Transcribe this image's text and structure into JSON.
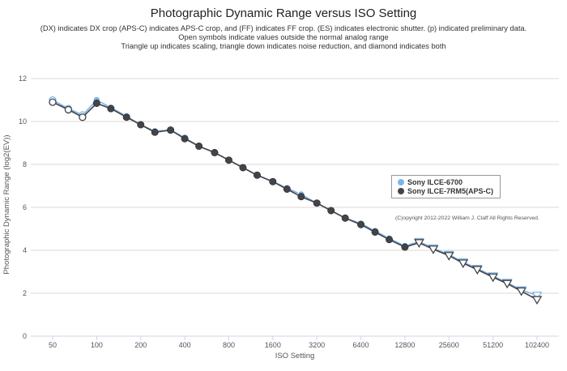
{
  "title": "Photographic Dynamic Range versus ISO Setting",
  "subtitle_lines": [
    "(DX) indicates DX crop (APS-C) indicates APS-C crop, and (FF) indicates FF crop. (ES) indicates electronic shutter. (p) indicated preliminary data.",
    "Open symbols indicate values outside the normal analog range",
    "Triangle up indicates scaling, triangle down indicates noise reduction, and diamond indicates both"
  ],
  "copyright": "(C)opyright 2012-2022 William J. Claff All Rights Reserved.",
  "colors": {
    "sony_6700": "#7cb5ec",
    "sony_7rm5": "#434348",
    "grid": "#d8d8d8",
    "axis": "#ccd6eb"
  },
  "chart_data": {
    "type": "line",
    "xlabel": "ISO Setting",
    "ylabel": "Photographic Dynamic Range (log2(EV))",
    "x_scale": "log2",
    "x_ticks": [
      50,
      100,
      200,
      400,
      800,
      1600,
      3200,
      6400,
      12800,
      25600,
      51200,
      102400
    ],
    "x_tick_labels": [
      "50",
      "100",
      "200",
      "400",
      "800",
      "1600",
      "3200",
      "6400",
      "12800",
      "25600",
      "51200",
      "102400"
    ],
    "ylim": [
      0,
      12
    ],
    "y_ticks": [
      0,
      2,
      4,
      6,
      8,
      10,
      12
    ],
    "grid": true,
    "legend_position": "right",
    "series": [
      {
        "name": "Sony ILCE-6700",
        "color": "#7cb5ec",
        "points": [
          {
            "x": 50,
            "y": 11.0,
            "marker": "open-circle"
          },
          {
            "x": 64,
            "y": 10.6,
            "marker": "open-circle"
          },
          {
            "x": 80,
            "y": 10.3,
            "marker": "open-circle"
          },
          {
            "x": 100,
            "y": 11.0,
            "marker": "circle"
          },
          {
            "x": 125,
            "y": 10.65,
            "marker": "circle"
          },
          {
            "x": 160,
            "y": 10.25,
            "marker": "circle"
          },
          {
            "x": 200,
            "y": 9.85,
            "marker": "circle"
          },
          {
            "x": 250,
            "y": 9.55,
            "marker": "circle"
          },
          {
            "x": 320,
            "y": 9.6,
            "marker": "circle"
          },
          {
            "x": 400,
            "y": 9.25,
            "marker": "circle"
          },
          {
            "x": 500,
            "y": 8.85,
            "marker": "circle"
          },
          {
            "x": 640,
            "y": 8.55,
            "marker": "circle"
          },
          {
            "x": 800,
            "y": 8.2,
            "marker": "circle"
          },
          {
            "x": 1000,
            "y": 7.85,
            "marker": "circle"
          },
          {
            "x": 1250,
            "y": 7.5,
            "marker": "circle"
          },
          {
            "x": 1600,
            "y": 7.2,
            "marker": "circle"
          },
          {
            "x": 2000,
            "y": 6.9,
            "marker": "circle"
          },
          {
            "x": 2500,
            "y": 6.6,
            "marker": "circle"
          },
          {
            "x": 3200,
            "y": 6.2,
            "marker": "circle"
          },
          {
            "x": 4000,
            "y": 5.85,
            "marker": "circle"
          },
          {
            "x": 5000,
            "y": 5.5,
            "marker": "circle"
          },
          {
            "x": 6400,
            "y": 5.25,
            "marker": "circle"
          },
          {
            "x": 8000,
            "y": 4.9,
            "marker": "circle"
          },
          {
            "x": 10000,
            "y": 4.55,
            "marker": "circle"
          },
          {
            "x": 12800,
            "y": 4.2,
            "marker": "circle"
          },
          {
            "x": 16000,
            "y": 4.4,
            "marker": "triangle-down"
          },
          {
            "x": 20000,
            "y": 4.1,
            "marker": "triangle-down"
          },
          {
            "x": 25600,
            "y": 3.8,
            "marker": "triangle-down"
          },
          {
            "x": 32000,
            "y": 3.45,
            "marker": "triangle-down"
          },
          {
            "x": 40000,
            "y": 3.15,
            "marker": "triangle-down"
          },
          {
            "x": 51200,
            "y": 2.8,
            "marker": "triangle-down"
          },
          {
            "x": 64000,
            "y": 2.5,
            "marker": "triangle-down"
          },
          {
            "x": 80000,
            "y": 2.15,
            "marker": "triangle-down"
          },
          {
            "x": 102400,
            "y": 1.9,
            "marker": "triangle-down"
          }
        ]
      },
      {
        "name": "Sony ILCE-7RM5(APS-C)",
        "color": "#434348",
        "points": [
          {
            "x": 50,
            "y": 10.9,
            "marker": "open-circle"
          },
          {
            "x": 64,
            "y": 10.55,
            "marker": "open-circle"
          },
          {
            "x": 80,
            "y": 10.2,
            "marker": "open-circle"
          },
          {
            "x": 100,
            "y": 10.85,
            "marker": "circle"
          },
          {
            "x": 125,
            "y": 10.6,
            "marker": "circle"
          },
          {
            "x": 160,
            "y": 10.2,
            "marker": "circle"
          },
          {
            "x": 200,
            "y": 9.85,
            "marker": "circle"
          },
          {
            "x": 250,
            "y": 9.5,
            "marker": "circle"
          },
          {
            "x": 320,
            "y": 9.6,
            "marker": "circle"
          },
          {
            "x": 400,
            "y": 9.2,
            "marker": "circle"
          },
          {
            "x": 500,
            "y": 8.85,
            "marker": "circle"
          },
          {
            "x": 640,
            "y": 8.55,
            "marker": "circle"
          },
          {
            "x": 800,
            "y": 8.2,
            "marker": "circle"
          },
          {
            "x": 1000,
            "y": 7.85,
            "marker": "circle"
          },
          {
            "x": 1250,
            "y": 7.5,
            "marker": "circle"
          },
          {
            "x": 1600,
            "y": 7.2,
            "marker": "circle"
          },
          {
            "x": 2000,
            "y": 6.85,
            "marker": "circle"
          },
          {
            "x": 2500,
            "y": 6.5,
            "marker": "circle"
          },
          {
            "x": 3200,
            "y": 6.2,
            "marker": "circle"
          },
          {
            "x": 4000,
            "y": 5.85,
            "marker": "circle"
          },
          {
            "x": 5000,
            "y": 5.5,
            "marker": "circle"
          },
          {
            "x": 6400,
            "y": 5.2,
            "marker": "circle"
          },
          {
            "x": 8000,
            "y": 4.85,
            "marker": "circle"
          },
          {
            "x": 10000,
            "y": 4.5,
            "marker": "circle"
          },
          {
            "x": 12800,
            "y": 4.15,
            "marker": "circle"
          },
          {
            "x": 16000,
            "y": 4.35,
            "marker": "triangle-down"
          },
          {
            "x": 20000,
            "y": 4.05,
            "marker": "triangle-down"
          },
          {
            "x": 25600,
            "y": 3.75,
            "marker": "triangle-down"
          },
          {
            "x": 32000,
            "y": 3.4,
            "marker": "triangle-down"
          },
          {
            "x": 40000,
            "y": 3.1,
            "marker": "triangle-down"
          },
          {
            "x": 51200,
            "y": 2.75,
            "marker": "triangle-down"
          },
          {
            "x": 64000,
            "y": 2.45,
            "marker": "triangle-down"
          },
          {
            "x": 80000,
            "y": 2.1,
            "marker": "triangle-down"
          },
          {
            "x": 102400,
            "y": 1.7,
            "marker": "triangle-down"
          }
        ]
      }
    ]
  }
}
